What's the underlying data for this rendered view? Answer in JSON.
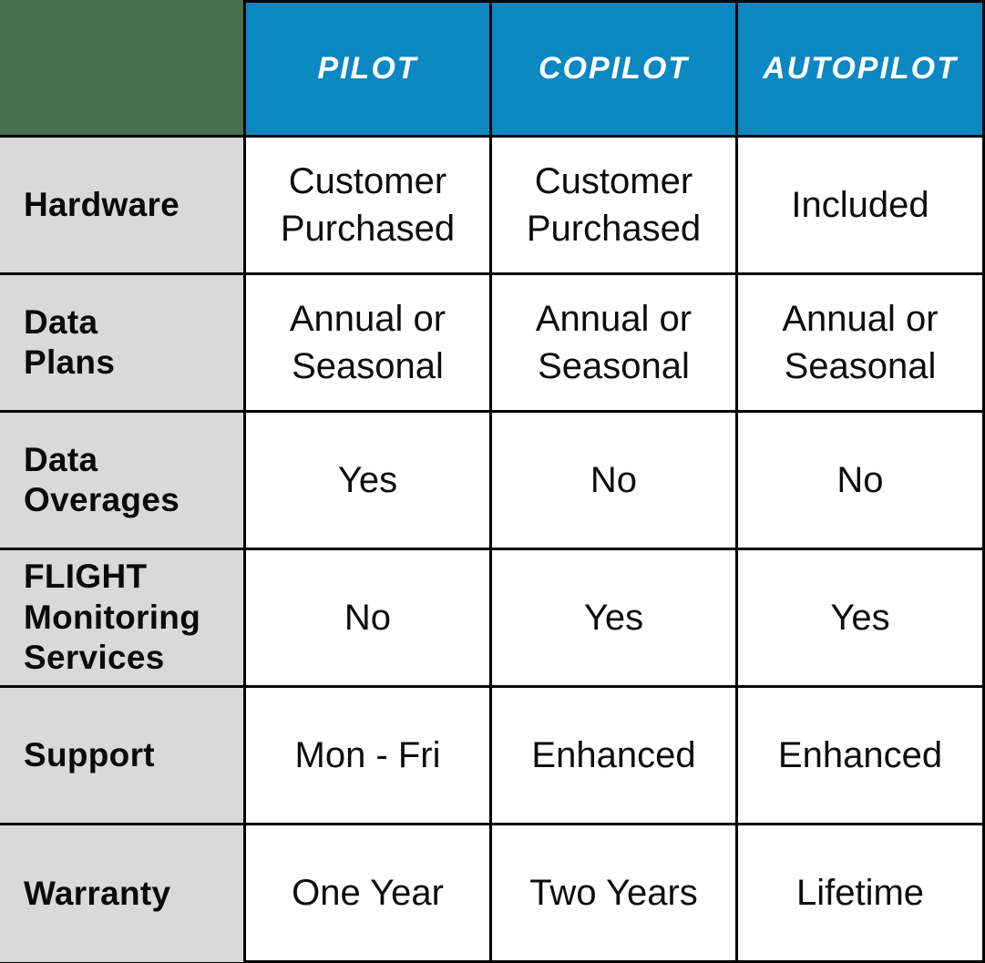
{
  "colors": {
    "corner_bg": "#48714F",
    "header_bg": "#0B87C2",
    "header_text": "#FFFFFF",
    "label_bg": "#D9D9D9",
    "body_text": "#0D0D0D",
    "border": "#000000"
  },
  "chart_data": {
    "type": "table",
    "title": "",
    "plans": [
      "PILOT",
      "COPILOT",
      "AUTOPILOT"
    ],
    "features": [
      "Hardware",
      "Data\nPlans",
      "Data\nOverages",
      "FLIGHT\nMonitoring\nServices",
      "Support",
      "Warranty"
    ],
    "cells": [
      [
        "Customer\nPurchased",
        "Customer\nPurchased",
        "Included"
      ],
      [
        "Annual or\nSeasonal",
        "Annual or\nSeasonal",
        "Annual or\nSeasonal"
      ],
      [
        "Yes",
        "No",
        "No"
      ],
      [
        "No",
        "Yes",
        "Yes"
      ],
      [
        "Mon - Fri",
        "Enhanced",
        "Enhanced"
      ],
      [
        "One Year",
        "Two Years",
        "Lifetime"
      ]
    ]
  }
}
